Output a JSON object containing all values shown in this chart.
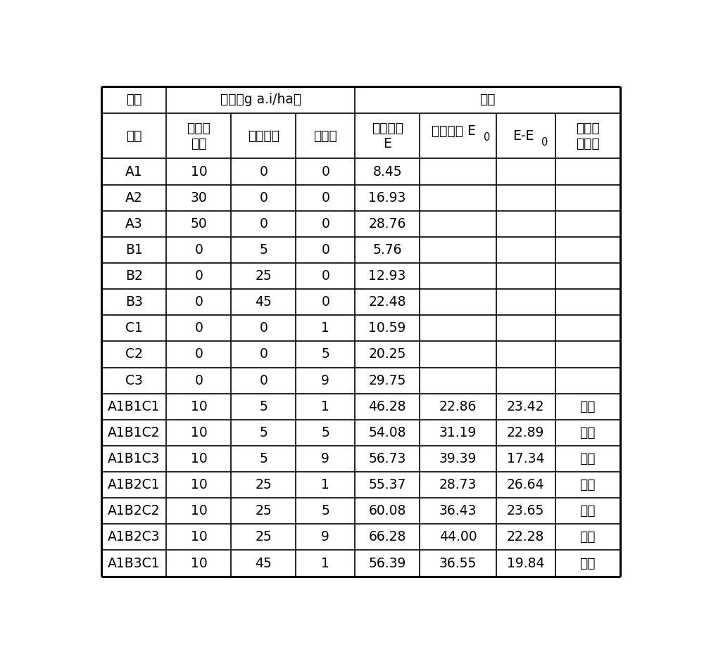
{
  "header1_col0": "处理",
  "header1_dose": "剂量（g a.i/ha）",
  "header1_baicao": "稗草",
  "header2": [
    "编号",
    "噁唑酰\n草胺",
    "异噁草松",
    "双草醚",
    "实际防效\nE",
    "理论防效 E0",
    "E-E0",
    "联合作\n用类型"
  ],
  "rows": [
    [
      "A1",
      "10",
      "0",
      "0",
      "8.45",
      "",
      "",
      ""
    ],
    [
      "A2",
      "30",
      "0",
      "0",
      "16.93",
      "",
      "",
      ""
    ],
    [
      "A3",
      "50",
      "0",
      "0",
      "28.76",
      "",
      "",
      ""
    ],
    [
      "B1",
      "0",
      "5",
      "0",
      "5.76",
      "",
      "",
      ""
    ],
    [
      "B2",
      "0",
      "25",
      "0",
      "12.93",
      "",
      "",
      ""
    ],
    [
      "B3",
      "0",
      "45",
      "0",
      "22.48",
      "",
      "",
      ""
    ],
    [
      "C1",
      "0",
      "0",
      "1",
      "10.59",
      "",
      "",
      ""
    ],
    [
      "C2",
      "0",
      "0",
      "5",
      "20.25",
      "",
      "",
      ""
    ],
    [
      "C3",
      "0",
      "0",
      "9",
      "29.75",
      "",
      "",
      ""
    ],
    [
      "A1B1C1",
      "10",
      "5",
      "1",
      "46.28",
      "22.86",
      "23.42",
      "增效"
    ],
    [
      "A1B1C2",
      "10",
      "5",
      "5",
      "54.08",
      "31.19",
      "22.89",
      "增效"
    ],
    [
      "A1B1C3",
      "10",
      "5",
      "9",
      "56.73",
      "39.39",
      "17.34",
      "增效"
    ],
    [
      "A1B2C1",
      "10",
      "25",
      "1",
      "55.37",
      "28.73",
      "26.64",
      "增效"
    ],
    [
      "A1B2C2",
      "10",
      "25",
      "5",
      "60.08",
      "36.43",
      "23.65",
      "增效"
    ],
    [
      "A1B2C3",
      "10",
      "25",
      "9",
      "66.28",
      "44.00",
      "22.28",
      "增效"
    ],
    [
      "A1B3C1",
      "10",
      "45",
      "1",
      "56.39",
      "36.55",
      "19.84",
      "增效"
    ]
  ],
  "col_ratios": [
    1.1,
    1.1,
    1.1,
    1.0,
    1.1,
    1.3,
    1.0,
    1.1
  ],
  "fig_width": 10.0,
  "fig_height": 9.33,
  "line_color": "#000000",
  "bg_color": "#ffffff",
  "text_color": "#000000",
  "font_size": 13.5,
  "font_size_small": 10.5
}
